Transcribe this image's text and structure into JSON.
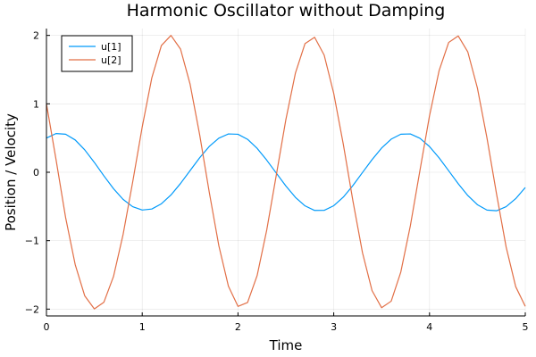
{
  "chart_data": {
    "type": "line",
    "title": "Harmonic Oscillator without Damping",
    "xlabel": "Time",
    "ylabel": "Position / Velocity",
    "xlim": [
      0,
      5
    ],
    "ylim": [
      -2.1,
      2.1
    ],
    "xticks": [
      0,
      1,
      2,
      3,
      4,
      5
    ],
    "xtick_labels": [
      "0",
      "1",
      "2",
      "3",
      "4",
      "5"
    ],
    "yticks": [
      -2,
      -1,
      0,
      1,
      2
    ],
    "ytick_labels": [
      "−2",
      "−1",
      "0",
      "1",
      "2"
    ],
    "grid": true,
    "legend": "top-left",
    "x": [
      0,
      0.1,
      0.2,
      0.3,
      0.4,
      0.5,
      0.6,
      0.7,
      0.8,
      0.9,
      1.0,
      1.1,
      1.2,
      1.3,
      1.4,
      1.5,
      1.6,
      1.7,
      1.8,
      1.9,
      2.0,
      2.1,
      2.2,
      2.3,
      2.4,
      2.5,
      2.6,
      2.7,
      2.8,
      2.9,
      3.0,
      3.1,
      3.2,
      3.3,
      3.4,
      3.5,
      3.6,
      3.7,
      3.8,
      3.9,
      4.0,
      4.1,
      4.2,
      4.3,
      4.4,
      4.5,
      4.6,
      4.7,
      4.8,
      4.9,
      5.0
    ],
    "series": [
      {
        "name": "u[1]",
        "color": "#009AFA",
        "values": [
          0.5,
          0.566,
          0.556,
          0.472,
          0.327,
          0.144,
          -0.053,
          -0.24,
          -0.396,
          -0.503,
          -0.552,
          -0.537,
          -0.461,
          -0.332,
          -0.164,
          0.024,
          0.212,
          0.377,
          0.498,
          0.56,
          0.555,
          0.481,
          0.349,
          0.177,
          -0.012,
          -0.2,
          -0.367,
          -0.491,
          -0.558,
          -0.557,
          -0.489,
          -0.363,
          -0.194,
          -0.004,
          0.184,
          0.354,
          0.484,
          0.556,
          0.56,
          0.496,
          0.375,
          0.21,
          0.022,
          -0.168,
          -0.34,
          -0.474,
          -0.553,
          -0.563,
          -0.503,
          -0.386,
          -0.224
        ]
      },
      {
        "name": "u[2]",
        "color": "#E26F46",
        "values": [
          1.0,
          0.186,
          -0.662,
          -1.349,
          -1.807,
          -1.997,
          -1.899,
          -1.524,
          -0.912,
          -0.146,
          0.662,
          1.378,
          1.851,
          2.0,
          1.8,
          1.287,
          0.548,
          -0.291,
          -1.073,
          -1.665,
          -1.96,
          -1.904,
          -1.509,
          -0.846,
          -0.042,
          0.77,
          1.451,
          1.88,
          1.973,
          1.712,
          1.151,
          0.408,
          -0.417,
          -1.176,
          -1.73,
          -1.98,
          -1.884,
          -1.46,
          -0.782,
          0.026,
          0.825,
          1.484,
          1.897,
          1.992,
          1.758,
          1.231,
          0.501,
          -0.318,
          -1.092,
          -1.672,
          -1.96
        ]
      }
    ]
  }
}
